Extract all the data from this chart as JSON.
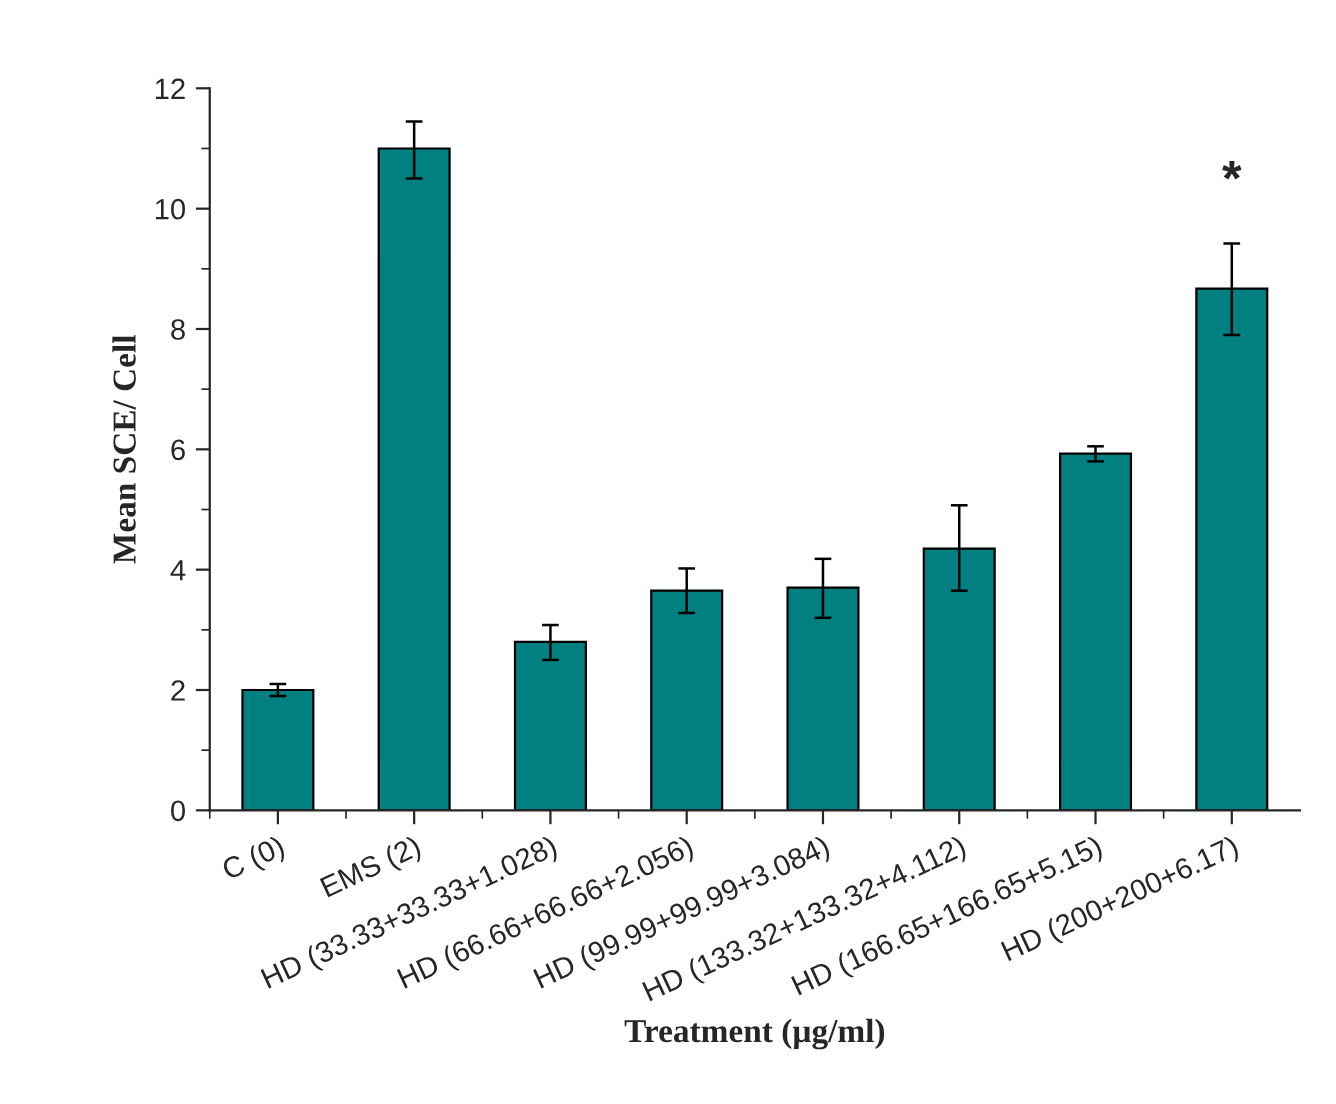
{
  "chart_data": {
    "type": "bar",
    "xlabel": "Treatment (µg/ml)",
    "ylabel": "Mean SCE/ Cell",
    "categories": [
      "C (0)",
      "EMS (2)",
      "HD (33.33+33.33+1.028)",
      "HD (66.66+66.66+2.056)",
      "HD (99.99+99.99+3.084)",
      "HD (133.32+133.32+4.112)",
      "HD (166.65+166.65+5.15)",
      "HD (200+200+6.17)"
    ],
    "values": [
      2.0,
      11.0,
      2.8,
      3.65,
      3.7,
      4.35,
      5.93,
      8.67
    ],
    "errors": [
      [
        1.9,
        2.1
      ],
      [
        10.5,
        11.45
      ],
      [
        2.5,
        3.08
      ],
      [
        3.28,
        4.02
      ],
      [
        3.2,
        4.18
      ],
      [
        3.65,
        5.07
      ],
      [
        5.8,
        6.05
      ],
      [
        7.9,
        9.42
      ]
    ],
    "color": "#008080",
    "ylim": [
      0,
      12
    ],
    "yticks": [
      0,
      2,
      4,
      6,
      8,
      10,
      12
    ],
    "annotations": [
      "*"
    ],
    "grid": false,
    "legend": false
  }
}
